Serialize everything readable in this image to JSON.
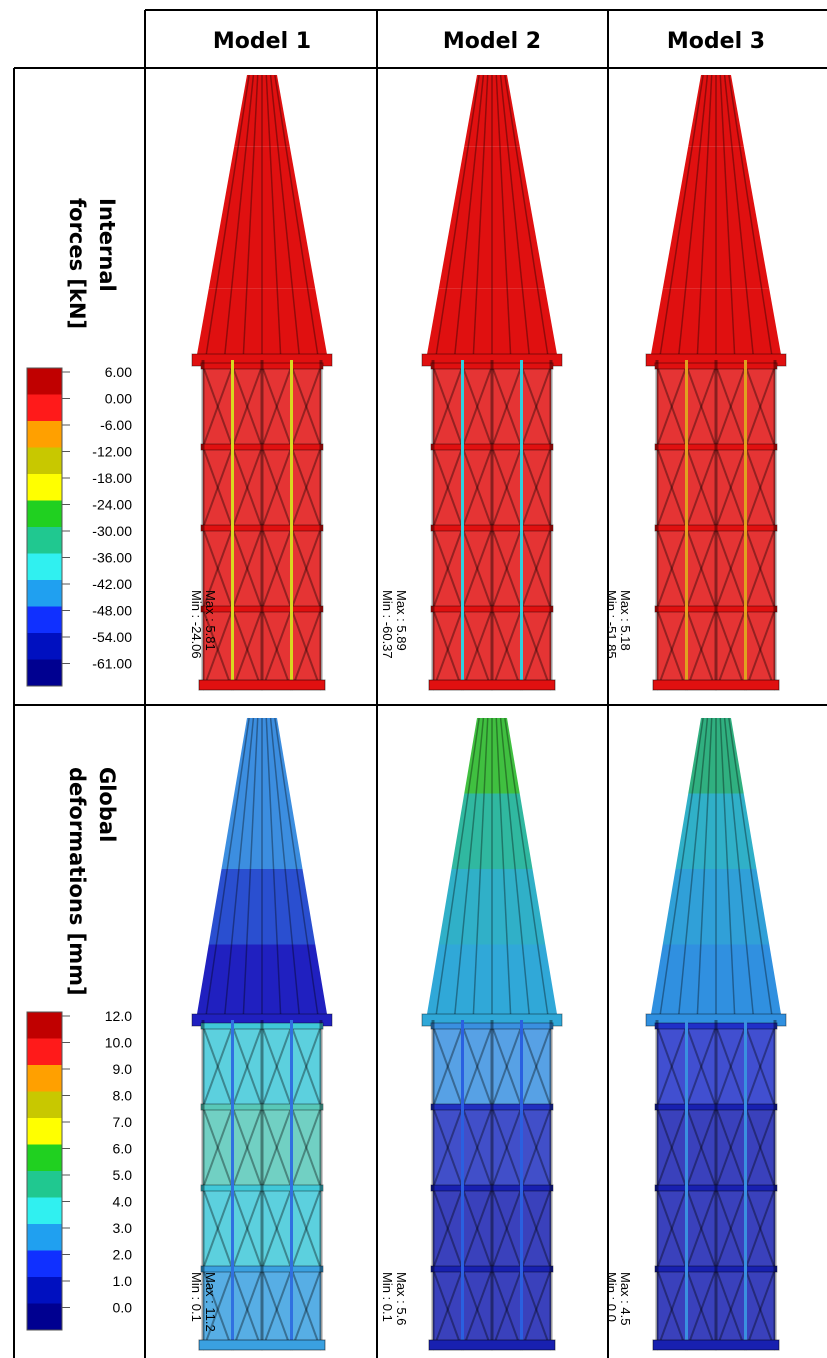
{
  "header": {
    "columns": [
      "Model 1",
      "Model 2",
      "Model 3"
    ]
  },
  "rows": [
    {
      "label": [
        "Internal",
        "forces [kN]"
      ],
      "legend": {
        "labels": [
          "6.00",
          "0.00",
          "-6.00",
          "-12.00",
          "-18.00",
          "-24.00",
          "-30.00",
          "-36.00",
          "-42.00",
          "-48.00",
          "-54.00",
          "-61.00"
        ],
        "colors": [
          "#c00000",
          "#ff1a1a",
          "#ffa000",
          "#c8c800",
          "#ffff00",
          "#20d020",
          "#20c890",
          "#30f0f0",
          "#20a0f0",
          "#1030ff",
          "#0010c0",
          "#000090"
        ]
      },
      "cells": [
        {
          "max": "Max :  5.81",
          "min": "Min : -24.06"
        },
        {
          "max": "Max :  5.89",
          "min": "Min : -60.37"
        },
        {
          "max": "Max :  5.18",
          "min": "Min : -51.85"
        }
      ]
    },
    {
      "label": [
        "Global",
        "deformations [mm]"
      ],
      "legend": {
        "labels": [
          "12.0",
          "10.0",
          "9.0",
          "8.0",
          "7.0",
          "6.0",
          "5.0",
          "4.0",
          "3.0",
          "2.0",
          "1.0",
          "0.0"
        ],
        "colors": [
          "#c00000",
          "#ff1a1a",
          "#ffa000",
          "#c8c800",
          "#ffff00",
          "#20d020",
          "#20c890",
          "#30f0f0",
          "#20a0f0",
          "#1030ff",
          "#0010c0",
          "#000090"
        ]
      },
      "cells": [
        {
          "max": "Max : 11.2",
          "min": "Min :  0.1"
        },
        {
          "max": "Max : 5.6",
          "min": "Min : 0.1"
        },
        {
          "max": "Max : 4.5",
          "min": "Min : 0.0"
        }
      ]
    }
  ]
}
